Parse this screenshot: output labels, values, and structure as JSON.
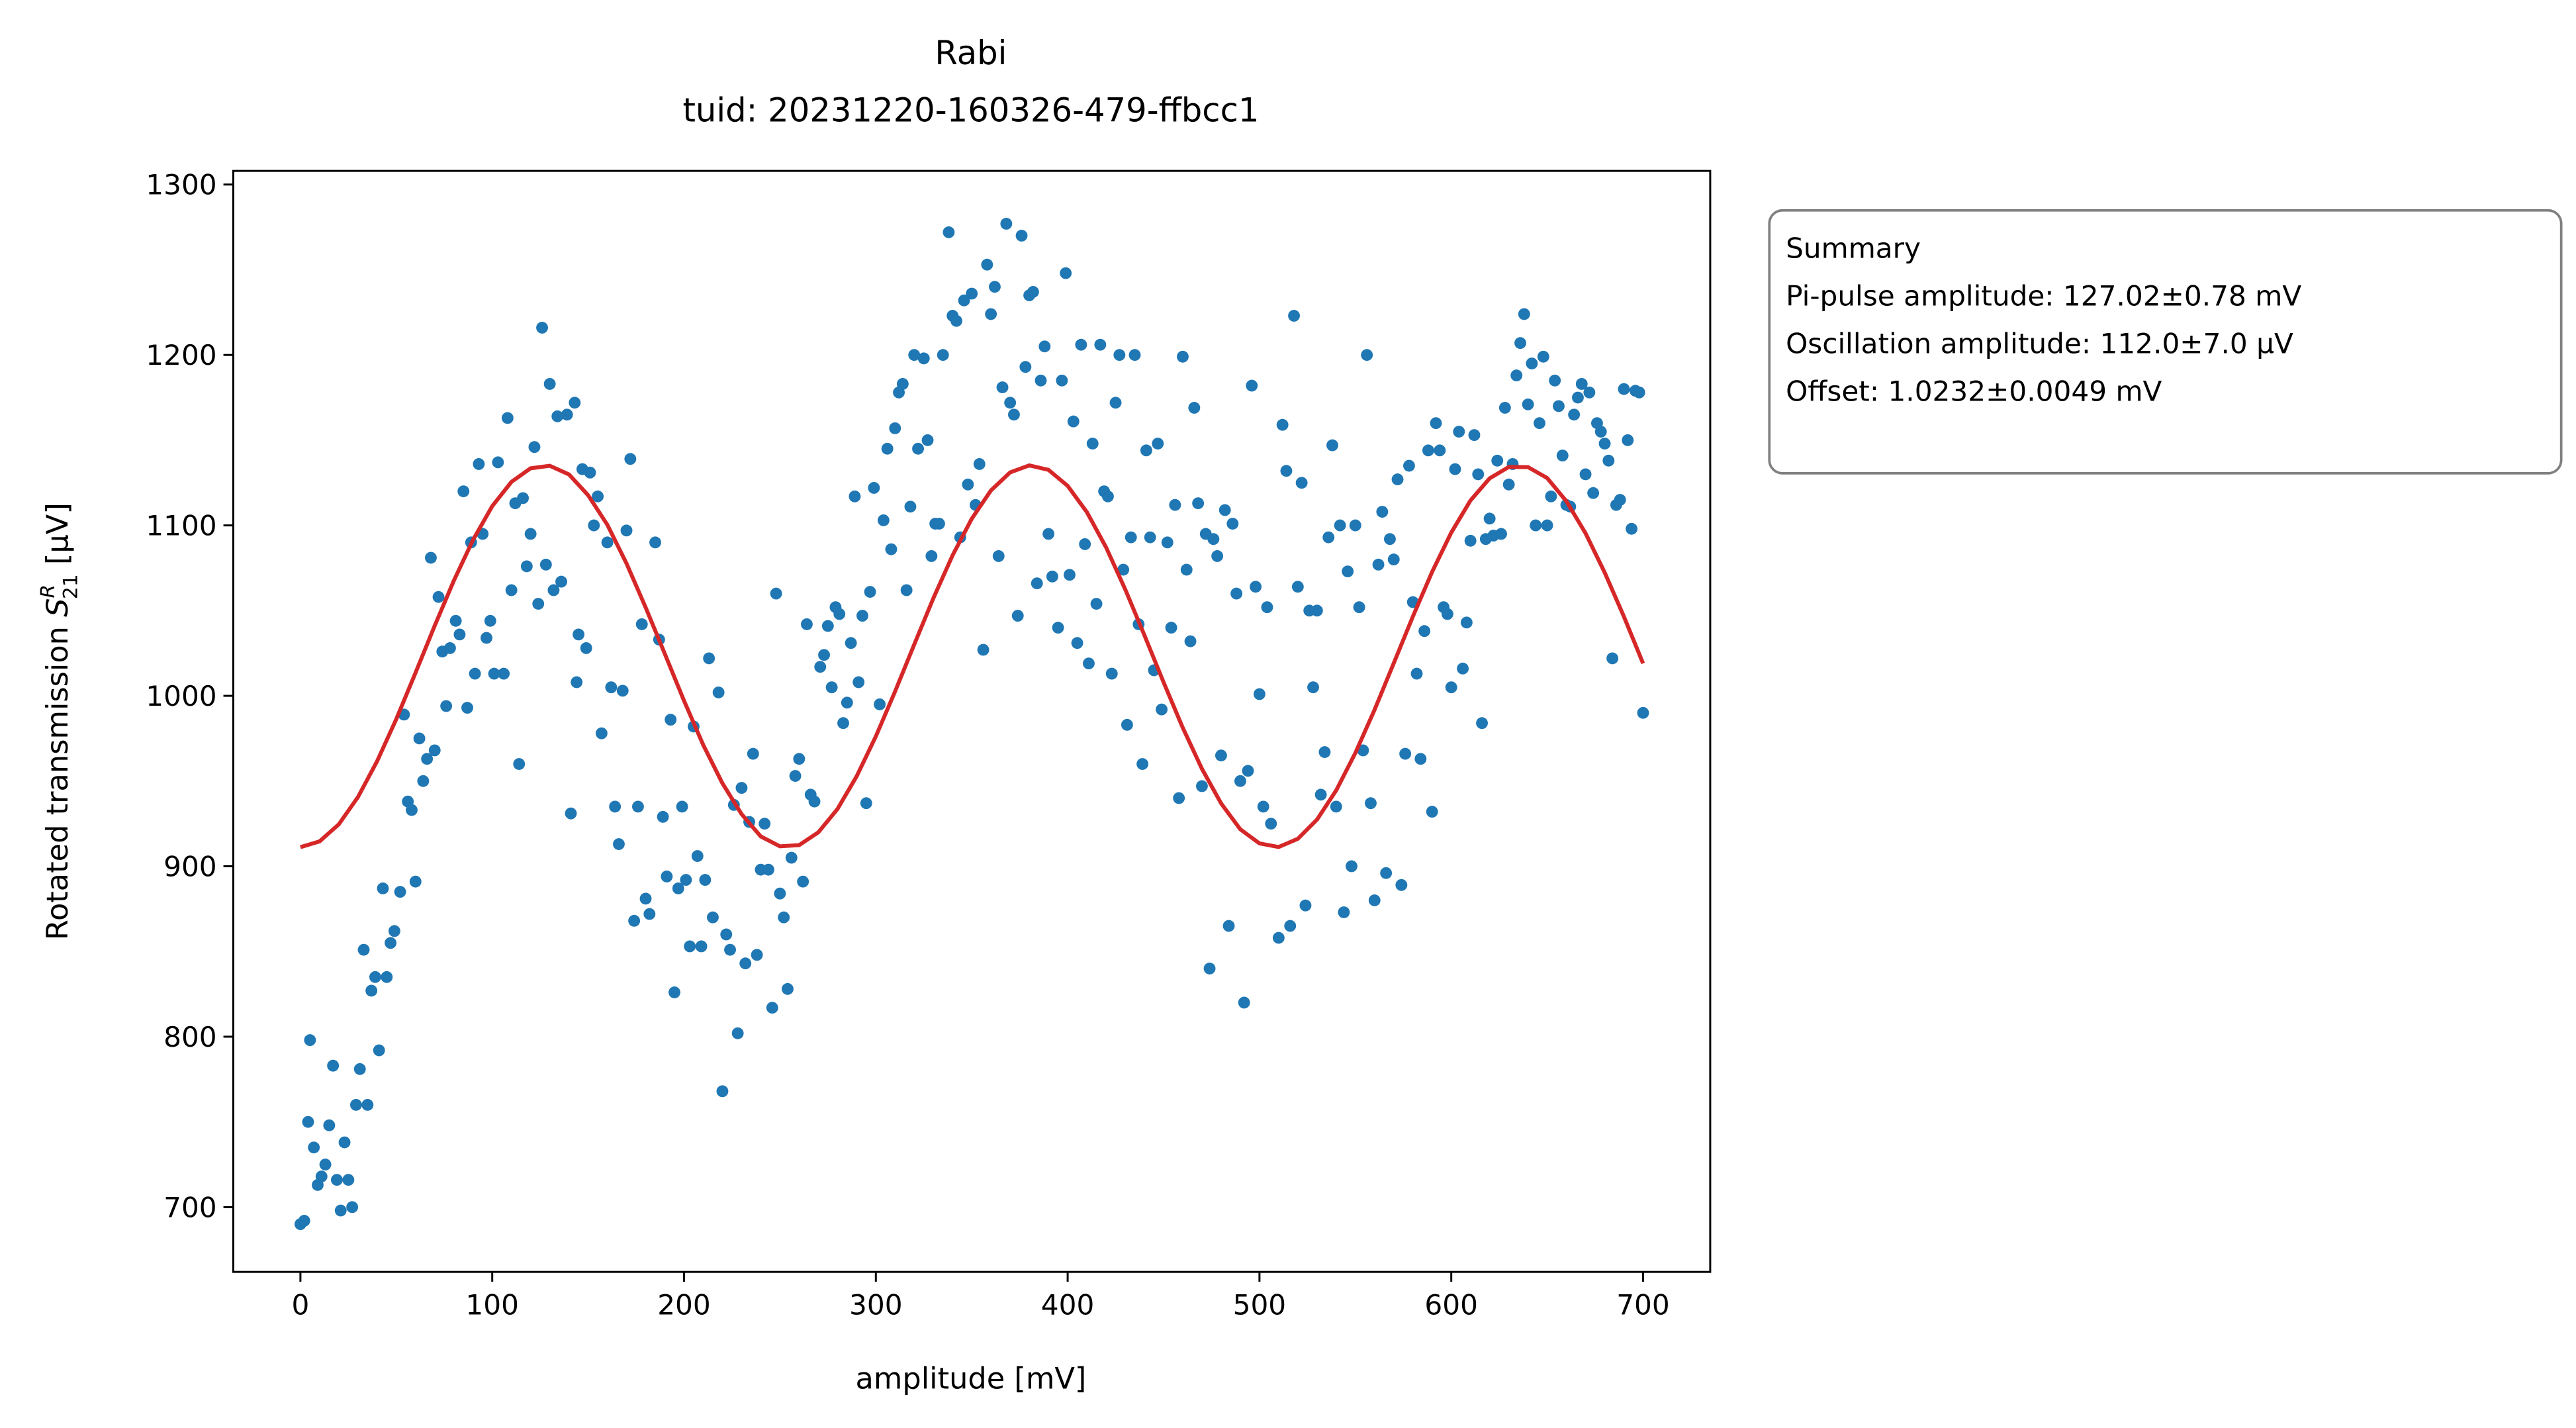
{
  "chart_data": {
    "type": "scatter",
    "title": [
      "Rabi",
      "tuid: 20231220-160326-479-ffbcc1"
    ],
    "xlabel": "amplitude [mV]",
    "ylabel": {
      "text": "Rotated transmission ",
      "symbol": "S",
      "sup": "R",
      "sub": "21",
      "unit": " [µV]"
    },
    "xlim": [
      -35,
      735
    ],
    "xticks": [
      0,
      100,
      200,
      300,
      400,
      500,
      600,
      700
    ],
    "ylim": [
      662,
      1308
    ],
    "yticks": [
      700,
      800,
      900,
      1000,
      1100,
      1200,
      1300
    ],
    "grid": false,
    "series": [
      {
        "type": "scatter",
        "color": "#1f77b4",
        "x": [
          0,
          2,
          4,
          5,
          7,
          9,
          11,
          13,
          15,
          17,
          19,
          21,
          23,
          25,
          27,
          29,
          31,
          33,
          35,
          37,
          39,
          41,
          43,
          45,
          47,
          49,
          52,
          54,
          56,
          58,
          60,
          62,
          64,
          66,
          68,
          70,
          72,
          74,
          76,
          78,
          81,
          83,
          85,
          87,
          89,
          91,
          93,
          95,
          97,
          99,
          101,
          103,
          106,
          108,
          110,
          112,
          114,
          116,
          118,
          120,
          122,
          124,
          126,
          128,
          130,
          132,
          134,
          136,
          139,
          141,
          143,
          144,
          145,
          147,
          149,
          151,
          153,
          155,
          157,
          160,
          162,
          164,
          166,
          168,
          170,
          172,
          174,
          176,
          178,
          180,
          182,
          185,
          187,
          189,
          191,
          193,
          195,
          197,
          199,
          201,
          203,
          205,
          207,
          209,
          211,
          213,
          215,
          218,
          220,
          222,
          224,
          226,
          228,
          230,
          232,
          234,
          236,
          238,
          240,
          242,
          244,
          246,
          248,
          250,
          252,
          254,
          256,
          258,
          260,
          262,
          264,
          266,
          268,
          271,
          273,
          275,
          277,
          279,
          281,
          283,
          285,
          287,
          289,
          291,
          293,
          295,
          297,
          299,
          302,
          304,
          306,
          308,
          310,
          312,
          314,
          316,
          318,
          320,
          322,
          325,
          327,
          329,
          331,
          333,
          335,
          338,
          340,
          342,
          344,
          346,
          348,
          350,
          352,
          354,
          356,
          358,
          360,
          362,
          364,
          366,
          368,
          370,
          372,
          374,
          376,
          378,
          380,
          382,
          384,
          386,
          388,
          390,
          392,
          395,
          397,
          399,
          401,
          403,
          405,
          407,
          409,
          411,
          413,
          415,
          417,
          419,
          421,
          423,
          425,
          427,
          429,
          431,
          433,
          435,
          437,
          439,
          441,
          443,
          445,
          447,
          449,
          452,
          454,
          456,
          458,
          460,
          462,
          464,
          466,
          468,
          470,
          472,
          474,
          476,
          478,
          480,
          482,
          484,
          486,
          488,
          490,
          492,
          494,
          496,
          498,
          500,
          502,
          504,
          506,
          510,
          512,
          514,
          516,
          518,
          520,
          522,
          524,
          526,
          528,
          530,
          532,
          534,
          536,
          538,
          540,
          542,
          544,
          546,
          548,
          550,
          552,
          554,
          556,
          558,
          560,
          562,
          564,
          566,
          568,
          570,
          572,
          574,
          576,
          578,
          580,
          582,
          584,
          586,
          588,
          590,
          592,
          594,
          596,
          598,
          600,
          602,
          604,
          606,
          608,
          610,
          612,
          614,
          616,
          618,
          620,
          622,
          624,
          626,
          628,
          630,
          632,
          634,
          636,
          638,
          640,
          642,
          644,
          646,
          648,
          650,
          652,
          654,
          656,
          658,
          660,
          662,
          664,
          666,
          668,
          670,
          672,
          674,
          676,
          678,
          680,
          682,
          684,
          686,
          688,
          690,
          692,
          694,
          696,
          698,
          700
        ],
        "values": [
          690,
          692,
          750,
          798,
          735,
          713,
          718,
          725,
          748,
          783,
          716,
          698,
          738,
          716,
          700,
          760,
          781,
          851,
          760,
          827,
          835,
          792,
          887,
          835,
          855,
          862,
          885,
          989,
          938,
          933,
          891,
          975,
          950,
          963,
          1081,
          968,
          1058,
          1026,
          994,
          1028,
          1044,
          1036,
          1120,
          993,
          1090,
          1013,
          1136,
          1095,
          1034,
          1044,
          1013,
          1137,
          1013,
          1163,
          1062,
          1113,
          960,
          1116,
          1076,
          1095,
          1146,
          1054,
          1216,
          1077,
          1183,
          1062,
          1164,
          1067,
          1165,
          931,
          1172,
          1008,
          1036,
          1133,
          1028,
          1131,
          1100,
          1117,
          978,
          1090,
          1005,
          935,
          913,
          1003,
          1097,
          1139,
          868,
          935,
          1042,
          881,
          872,
          1090,
          1033,
          929,
          894,
          986,
          826,
          887,
          935,
          892,
          853,
          982,
          906,
          853,
          892,
          1022,
          870,
          1002,
          768,
          860,
          851,
          936,
          802,
          946,
          843,
          926,
          966,
          848,
          898,
          925,
          898,
          817,
          1060,
          884,
          870,
          828,
          905,
          953,
          963,
          891,
          1042,
          942,
          938,
          1017,
          1024,
          1041,
          1005,
          1052,
          1048,
          984,
          996,
          1031,
          1117,
          1008,
          1047,
          937,
          1061,
          1122,
          995,
          1103,
          1145,
          1086,
          1157,
          1178,
          1183,
          1062,
          1111,
          1200,
          1145,
          1198,
          1150,
          1082,
          1101,
          1101,
          1200,
          1272,
          1223,
          1220,
          1093,
          1232,
          1124,
          1236,
          1112,
          1136,
          1027,
          1253,
          1224,
          1240,
          1082,
          1181,
          1277,
          1172,
          1165,
          1047,
          1270,
          1193,
          1235,
          1237,
          1066,
          1185,
          1205,
          1095,
          1070,
          1040,
          1185,
          1248,
          1071,
          1161,
          1031,
          1206,
          1089,
          1019,
          1148,
          1054,
          1206,
          1120,
          1117,
          1013,
          1172,
          1200,
          1074,
          983,
          1093,
          1200,
          1042,
          960,
          1144,
          1093,
          1015,
          1148,
          992,
          1090,
          1040,
          1112,
          940,
          1199,
          1074,
          1032,
          1169,
          1113,
          947,
          1095,
          840,
          1092,
          1082,
          965,
          1109,
          865,
          1101,
          1060,
          950,
          820,
          956,
          1182,
          1064,
          1001,
          935,
          1052,
          925,
          858,
          1159,
          1132,
          865,
          1223,
          1064,
          1125,
          877,
          1050,
          1005,
          1050,
          942,
          967,
          1093,
          1147,
          935,
          1100,
          873,
          1073,
          900,
          1100,
          1052,
          968,
          1200,
          937,
          880,
          1077,
          1108,
          896,
          1092,
          1080,
          1127,
          889,
          966,
          1135,
          1055,
          1013,
          963,
          1038,
          1144,
          932,
          1160,
          1144,
          1052,
          1048,
          1005,
          1133,
          1155,
          1016,
          1043,
          1091,
          1153,
          1130,
          984,
          1092,
          1104,
          1094,
          1138,
          1095,
          1169,
          1124,
          1136,
          1188,
          1207,
          1224,
          1171,
          1195,
          1100,
          1160,
          1199,
          1100,
          1117,
          1185,
          1170,
          1141,
          1112,
          1111,
          1165,
          1175,
          1183,
          1130,
          1178,
          1119,
          1160,
          1155,
          1148,
          1138,
          1022,
          1112,
          1115,
          1180,
          1150,
          1098,
          1179,
          1178,
          990
        ]
      },
      {
        "type": "line",
        "color": "#d62728",
        "x": [
          0,
          10,
          20,
          30,
          40,
          50,
          60,
          70,
          80,
          90,
          100,
          110,
          120,
          130,
          140,
          150,
          160,
          170,
          180,
          190,
          200,
          210,
          220,
          230,
          240,
          250,
          260,
          270,
          280,
          290,
          300,
          310,
          320,
          330,
          340,
          350,
          360,
          370,
          380,
          390,
          400,
          410,
          420,
          430,
          440,
          450,
          460,
          470,
          480,
          490,
          500,
          510,
          520,
          530,
          540,
          550,
          560,
          570,
          580,
          590,
          600,
          610,
          620,
          630,
          640,
          650,
          660,
          670,
          680,
          690,
          700
        ],
        "values": [
          911.2,
          914.6,
          924.6,
          940.6,
          961.7,
          986.4,
          1013.5,
          1041.1,
          1067.6,
          1091.5,
          1111.3,
          1125.5,
          1133.5,
          1135.0,
          1129.9,
          1117.7,
          1100.4,
          1077.7,
          1051.8,
          1024.6,
          997.1,
          971.2,
          948.7,
          930.6,
          917.5,
          911.7,
          912.4,
          919.9,
          933.6,
          952.8,
          976.2,
          1002.5,
          1030.1,
          1057.3,
          1082.4,
          1103.9,
          1120.5,
          1131.1,
          1135.2,
          1132.6,
          1123.2,
          1107.8,
          1087.2,
          1062.5,
          1035.6,
          1008.0,
          981.3,
          957.2,
          936.9,
          921.7,
          913.4,
          911.3,
          916.1,
          927.4,
          944.5,
          966.5,
          991.8,
          1019.1,
          1046.6,
          1072.7,
          1095.8,
          1114.6,
          1127.6,
          1134.3,
          1134.2,
          1127.8,
          1114.2,
          1095.4,
          1072.3,
          1046.5,
          1019.0
        ]
      }
    ],
    "annotation": {
      "title": "Summary",
      "lines": [
        "Pi-pulse amplitude: 127.02±0.78 mV",
        "Oscillation amplitude: 112.0±7.0 µV",
        "Offset: 1.0232±0.0049 mV"
      ]
    }
  }
}
